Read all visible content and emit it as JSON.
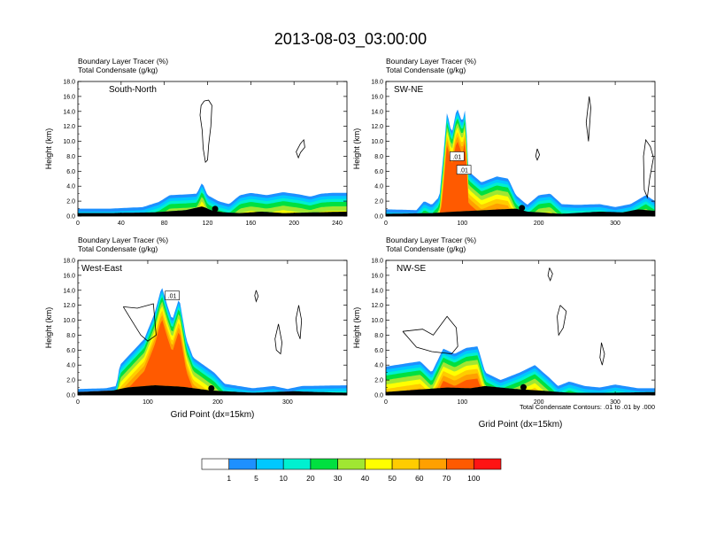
{
  "figure": {
    "title": "2013-08-03_03:00:00",
    "footnote": "Total Condensate Contours: .01 to .01 by .000",
    "xlabel": "Grid Point (dx=15km)"
  },
  "colorbar": {
    "labels": [
      "1",
      "5",
      "10",
      "20",
      "30",
      "40",
      "50",
      "60",
      "70",
      "100"
    ],
    "colors": [
      "#ffffff",
      "#1e90ff",
      "#00c8ff",
      "#00f0d0",
      "#00e040",
      "#a0e632",
      "#ffff00",
      "#ffcc00",
      "#ffa000",
      "#ff5a00",
      "#ff1414"
    ]
  },
  "chart_data": [
    {
      "type": "heatmap",
      "name": "South-North",
      "header": [
        "Boundary Layer Tracer   (%)",
        "Total Condensate   (g/kg)"
      ],
      "ylabel": "Height (km)",
      "xlim": [
        0,
        249
      ],
      "ylim": [
        0,
        18
      ],
      "xticks": [
        0,
        40,
        80,
        120,
        160,
        200,
        240
      ],
      "yticks": [
        "0.0",
        "2.0",
        "4.0",
        "6.0",
        "8.0",
        "10.0",
        "12.0",
        "14.0",
        "16.0",
        "18.0"
      ],
      "show_xlabel": false,
      "annotations": [],
      "marker_x": 127,
      "terrain": [
        [
          0,
          0.4
        ],
        [
          30,
          0.4
        ],
        [
          70,
          0.5
        ],
        [
          100,
          0.8
        ],
        [
          115,
          1.3
        ],
        [
          125,
          0.7
        ],
        [
          135,
          0.5
        ],
        [
          150,
          0.4
        ],
        [
          170,
          0.6
        ],
        [
          190,
          0.4
        ],
        [
          220,
          0.5
        ],
        [
          249,
          0.6
        ]
      ],
      "tracer_top": [
        [
          0,
          1.0
        ],
        [
          30,
          1.0
        ],
        [
          60,
          1.2
        ],
        [
          75,
          1.9
        ],
        [
          85,
          2.8
        ],
        [
          100,
          2.9
        ],
        [
          110,
          3.0
        ],
        [
          115,
          4.5
        ],
        [
          120,
          2.8
        ],
        [
          130,
          2.0
        ],
        [
          140,
          1.6
        ],
        [
          150,
          2.8
        ],
        [
          160,
          3.1
        ],
        [
          175,
          2.8
        ],
        [
          190,
          3.2
        ],
        [
          205,
          2.9
        ],
        [
          215,
          2.6
        ],
        [
          225,
          3.0
        ],
        [
          235,
          3.1
        ],
        [
          249,
          3.1
        ]
      ],
      "condensate_contours": [
        [
          [
            117,
            15.4
          ],
          [
            121,
            15.5
          ],
          [
            124,
            14.8
          ],
          [
            123,
            12.0
          ],
          [
            121,
            9.5
          ],
          [
            120,
            7.5
          ],
          [
            118,
            7.2
          ],
          [
            116,
            9.0
          ],
          [
            115,
            11.5
          ],
          [
            113,
            13.5
          ],
          [
            114,
            14.8
          ],
          [
            117,
            15.4
          ]
        ],
        [
          [
            206,
            9.7
          ],
          [
            209,
            10.2
          ],
          [
            210,
            9.2
          ],
          [
            206,
            8.5
          ],
          [
            204,
            7.8
          ],
          [
            202,
            8.6
          ],
          [
            206,
            9.7
          ]
        ]
      ]
    },
    {
      "type": "heatmap",
      "name": "SW-NE",
      "header": [
        "Boundary Layer Tracer   (%)",
        "Total Condensate   (g/kg)"
      ],
      "ylabel": "Height (km)",
      "xlim": [
        0,
        352
      ],
      "ylim": [
        0,
        18
      ],
      "xticks": [
        0,
        100,
        200,
        300
      ],
      "yticks": [
        "0.0",
        "2.0",
        "4.0",
        "6.0",
        "8.0",
        "10.0",
        "12.0",
        "14.0",
        "16.0",
        "18.0"
      ],
      "show_xlabel": false,
      "annotations": [
        {
          "x": 93,
          "y": 8.0,
          "text": ".01"
        },
        {
          "x": 102,
          "y": 6.2,
          "text": ".01"
        }
      ],
      "marker_x": 178,
      "terrain": [
        [
          0,
          0.3
        ],
        [
          60,
          0.4
        ],
        [
          90,
          0.6
        ],
        [
          130,
          0.8
        ],
        [
          170,
          1.0
        ],
        [
          185,
          0.6
        ],
        [
          230,
          0.3
        ],
        [
          280,
          0.6
        ],
        [
          310,
          0.5
        ],
        [
          330,
          0.9
        ],
        [
          352,
          0.7
        ]
      ],
      "tracer_top": [
        [
          0,
          0.9
        ],
        [
          40,
          0.8
        ],
        [
          50,
          2.0
        ],
        [
          60,
          1.5
        ],
        [
          70,
          2.6
        ],
        [
          75,
          8.0
        ],
        [
          80,
          14.0
        ],
        [
          86,
          11.0
        ],
        [
          93,
          14.5
        ],
        [
          100,
          12.5
        ],
        [
          104,
          14.5
        ],
        [
          108,
          6.0
        ],
        [
          125,
          4.5
        ],
        [
          145,
          5.3
        ],
        [
          160,
          5.0
        ],
        [
          170,
          2.8
        ],
        [
          185,
          1.5
        ],
        [
          200,
          2.8
        ],
        [
          215,
          3.0
        ],
        [
          230,
          1.6
        ],
        [
          250,
          1.5
        ],
        [
          280,
          1.6
        ],
        [
          300,
          1.2
        ],
        [
          320,
          1.6
        ],
        [
          340,
          2.8
        ],
        [
          352,
          2.0
        ]
      ],
      "condensate_contours": [
        [
          [
            337,
            8.0
          ],
          [
            340,
            10.2
          ],
          [
            346,
            9.3
          ],
          [
            350,
            7.8
          ],
          [
            345,
            5.0
          ],
          [
            342,
            2.5
          ],
          [
            338,
            3.5
          ],
          [
            337,
            8.0
          ]
        ],
        [
          [
            266,
            16.0
          ],
          [
            268,
            14.5
          ],
          [
            265,
            10.0
          ],
          [
            262,
            12.5
          ],
          [
            266,
            16.0
          ]
        ],
        [
          [
            198,
            9.0
          ],
          [
            201,
            8.2
          ],
          [
            198,
            7.5
          ],
          [
            196,
            8.0
          ],
          [
            198,
            9.0
          ]
        ]
      ]
    },
    {
      "type": "heatmap",
      "name": "West-East",
      "header": [
        "Boundary Layer Tracer   (%)",
        "Total Condensate   (g/kg)"
      ],
      "ylabel": "Height (km)",
      "xlim": [
        0,
        385
      ],
      "ylim": [
        0,
        18
      ],
      "xticks": [
        0,
        100,
        200,
        300
      ],
      "yticks": [
        "0.0",
        "2.0",
        "4.0",
        "6.0",
        "8.0",
        "10.0",
        "12.0",
        "14.0",
        "16.0",
        "18.0"
      ],
      "show_xlabel": true,
      "annotations": [
        {
          "x": 135,
          "y": 13.3,
          "text": ".01"
        }
      ],
      "marker_x": 191,
      "terrain": [
        [
          0,
          0.4
        ],
        [
          50,
          0.6
        ],
        [
          70,
          1.0
        ],
        [
          110,
          1.3
        ],
        [
          150,
          1.1
        ],
        [
          190,
          0.6
        ],
        [
          250,
          0.3
        ],
        [
          310,
          0.5
        ],
        [
          340,
          0.4
        ],
        [
          385,
          0.3
        ]
      ],
      "tracer_top": [
        [
          0,
          0.8
        ],
        [
          40,
          0.9
        ],
        [
          55,
          1.2
        ],
        [
          60,
          4.0
        ],
        [
          70,
          5.0
        ],
        [
          95,
          7.5
        ],
        [
          110,
          11.0
        ],
        [
          120,
          14.5
        ],
        [
          128,
          12.0
        ],
        [
          135,
          10.0
        ],
        [
          145,
          13.0
        ],
        [
          155,
          7.5
        ],
        [
          165,
          5.0
        ],
        [
          180,
          4.0
        ],
        [
          195,
          3.0
        ],
        [
          210,
          1.5
        ],
        [
          230,
          1.2
        ],
        [
          250,
          0.9
        ],
        [
          280,
          1.2
        ],
        [
          300,
          0.8
        ],
        [
          320,
          1.2
        ],
        [
          385,
          1.3
        ]
      ],
      "condensate_contours": [
        [
          [
            65,
            11.8
          ],
          [
            85,
            11.6
          ],
          [
            108,
            12.2
          ],
          [
            112,
            8.0
          ],
          [
            100,
            7.2
          ],
          [
            90,
            8.0
          ],
          [
            78,
            9.8
          ],
          [
            65,
            11.8
          ]
        ],
        [
          [
            287,
            9.5
          ],
          [
            292,
            7.0
          ],
          [
            290,
            5.5
          ],
          [
            284,
            6.0
          ],
          [
            282,
            7.5
          ],
          [
            287,
            9.5
          ]
        ],
        [
          [
            255,
            14.0
          ],
          [
            258,
            13.2
          ],
          [
            255,
            12.5
          ],
          [
            253,
            13.3
          ],
          [
            255,
            14.0
          ]
        ],
        [
          [
            316,
            12.0
          ],
          [
            320,
            10.0
          ],
          [
            318,
            7.5
          ],
          [
            314,
            8.5
          ],
          [
            312,
            10.2
          ],
          [
            316,
            12.0
          ]
        ]
      ]
    },
    {
      "type": "heatmap",
      "name": "NW-SE",
      "header": [
        "Boundary Layer Tracer   (%)",
        "Total Condensate   (g/kg)"
      ],
      "ylabel": "Height (km)",
      "xlim": [
        0,
        352
      ],
      "ylim": [
        0,
        18
      ],
      "xticks": [
        0,
        100,
        200,
        300
      ],
      "yticks": [
        "0.0",
        "2.0",
        "4.0",
        "6.0",
        "8.0",
        "10.0",
        "12.0",
        "14.0",
        "16.0",
        "18.0"
      ],
      "show_xlabel": true,
      "annotations": [],
      "marker_x": 180,
      "terrain": [
        [
          0,
          0.4
        ],
        [
          40,
          0.7
        ],
        [
          80,
          1.0
        ],
        [
          110,
          0.9
        ],
        [
          130,
          1.2
        ],
        [
          170,
          0.8
        ],
        [
          200,
          0.6
        ],
        [
          240,
          0.3
        ],
        [
          300,
          0.3
        ],
        [
          352,
          0.4
        ]
      ],
      "tracer_top": [
        [
          0,
          3.8
        ],
        [
          25,
          4.2
        ],
        [
          45,
          4.5
        ],
        [
          60,
          3.0
        ],
        [
          75,
          6.2
        ],
        [
          90,
          5.5
        ],
        [
          105,
          6.3
        ],
        [
          120,
          6.5
        ],
        [
          130,
          3.0
        ],
        [
          150,
          2.0
        ],
        [
          175,
          3.0
        ],
        [
          195,
          4.0
        ],
        [
          215,
          2.2
        ],
        [
          225,
          1.2
        ],
        [
          240,
          1.8
        ],
        [
          260,
          1.2
        ],
        [
          280,
          1.0
        ],
        [
          300,
          1.4
        ],
        [
          330,
          0.9
        ],
        [
          352,
          0.9
        ]
      ],
      "condensate_contours": [
        [
          [
            22,
            8.5
          ],
          [
            48,
            8.8
          ],
          [
            62,
            8.0
          ],
          [
            80,
            10.5
          ],
          [
            92,
            9.0
          ],
          [
            94,
            6.5
          ],
          [
            86,
            5.5
          ],
          [
            60,
            5.8
          ],
          [
            40,
            6.4
          ],
          [
            22,
            8.5
          ]
        ],
        [
          [
            214,
            17.0
          ],
          [
            218,
            16.2
          ],
          [
            215,
            15.3
          ],
          [
            212,
            16.0
          ],
          [
            214,
            17.0
          ]
        ],
        [
          [
            228,
            12.0
          ],
          [
            236,
            11.2
          ],
          [
            232,
            9.0
          ],
          [
            226,
            8.0
          ],
          [
            224,
            10.5
          ],
          [
            228,
            12.0
          ]
        ],
        [
          [
            282,
            7.0
          ],
          [
            286,
            5.5
          ],
          [
            283,
            4.0
          ],
          [
            280,
            5.0
          ],
          [
            282,
            7.0
          ]
        ]
      ]
    }
  ]
}
